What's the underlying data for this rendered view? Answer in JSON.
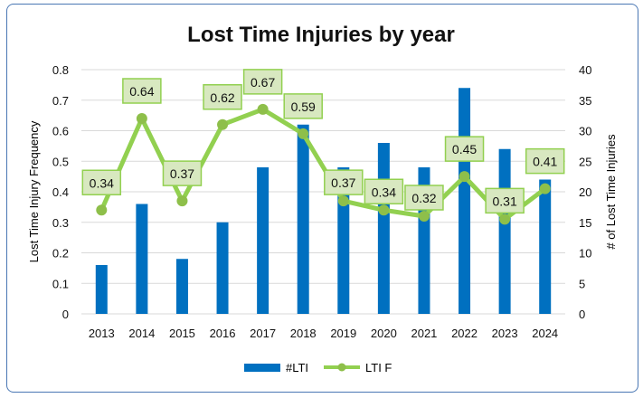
{
  "chart_data": {
    "type": "bar+line",
    "title": "Lost Time Injuries by year",
    "categories": [
      "2013",
      "2014",
      "2015",
      "2016",
      "2017",
      "2018",
      "2019",
      "2020",
      "2021",
      "2022",
      "2023",
      "2024"
    ],
    "series": [
      {
        "name": "#LTI",
        "type": "bar",
        "axis": "right",
        "color": "#0070c0",
        "values": [
          8,
          18,
          9,
          15,
          24,
          31,
          24,
          28,
          24,
          37,
          27,
          22
        ]
      },
      {
        "name": "LTI F",
        "type": "line",
        "axis": "left",
        "color": "#92d050",
        "values": [
          0.34,
          0.64,
          0.37,
          0.62,
          0.67,
          0.59,
          0.37,
          0.34,
          0.32,
          0.45,
          0.31,
          0.41
        ],
        "labels": [
          "0.34",
          "0.64",
          "0.37",
          "0.62",
          "0.67",
          "0.59",
          "0.37",
          "0.34",
          "0.32",
          "0.45",
          "0.31",
          "0.41"
        ]
      }
    ],
    "ylabel": "Lost Time Injury Frequency",
    "y2label": "# of Lost Time Injuries",
    "ylim": [
      0,
      0.8
    ],
    "y2lim": [
      0,
      40
    ],
    "yticks": [
      "0",
      "0.1",
      "0.2",
      "0.3",
      "0.4",
      "0.5",
      "0.6",
      "0.7",
      "0.8"
    ],
    "y2ticks": [
      "0",
      "5",
      "10",
      "15",
      "20",
      "25",
      "30",
      "35",
      "40"
    ],
    "grid": true,
    "legend": "bottom"
  }
}
